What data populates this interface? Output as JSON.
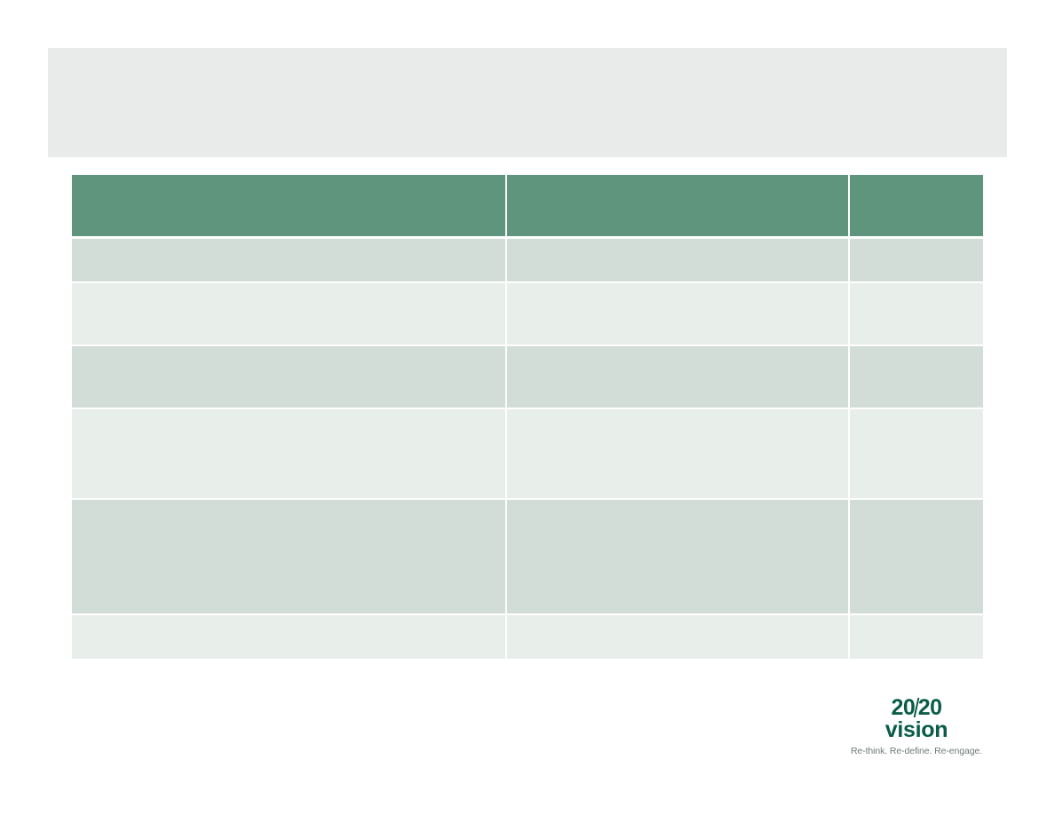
{
  "slide": {
    "title": ""
  },
  "table": {
    "headers": [
      "",
      "",
      ""
    ],
    "rows": [
      [
        "",
        "",
        ""
      ],
      [
        "",
        "",
        ""
      ],
      [
        "",
        "",
        ""
      ],
      [
        "",
        "",
        ""
      ],
      [
        "",
        "",
        ""
      ],
      [
        "",
        "",
        ""
      ]
    ]
  },
  "logo": {
    "part1": "20",
    "part2": "20",
    "word": "vision",
    "tagline": "Re-think. Re-define. Re-engage."
  },
  "colors": {
    "header_fill": "#5e957c",
    "row_dark": "#d3ddd8",
    "row_light": "#e8eeea",
    "title_band": "#e9ebea",
    "brand": "#0a5c49"
  }
}
